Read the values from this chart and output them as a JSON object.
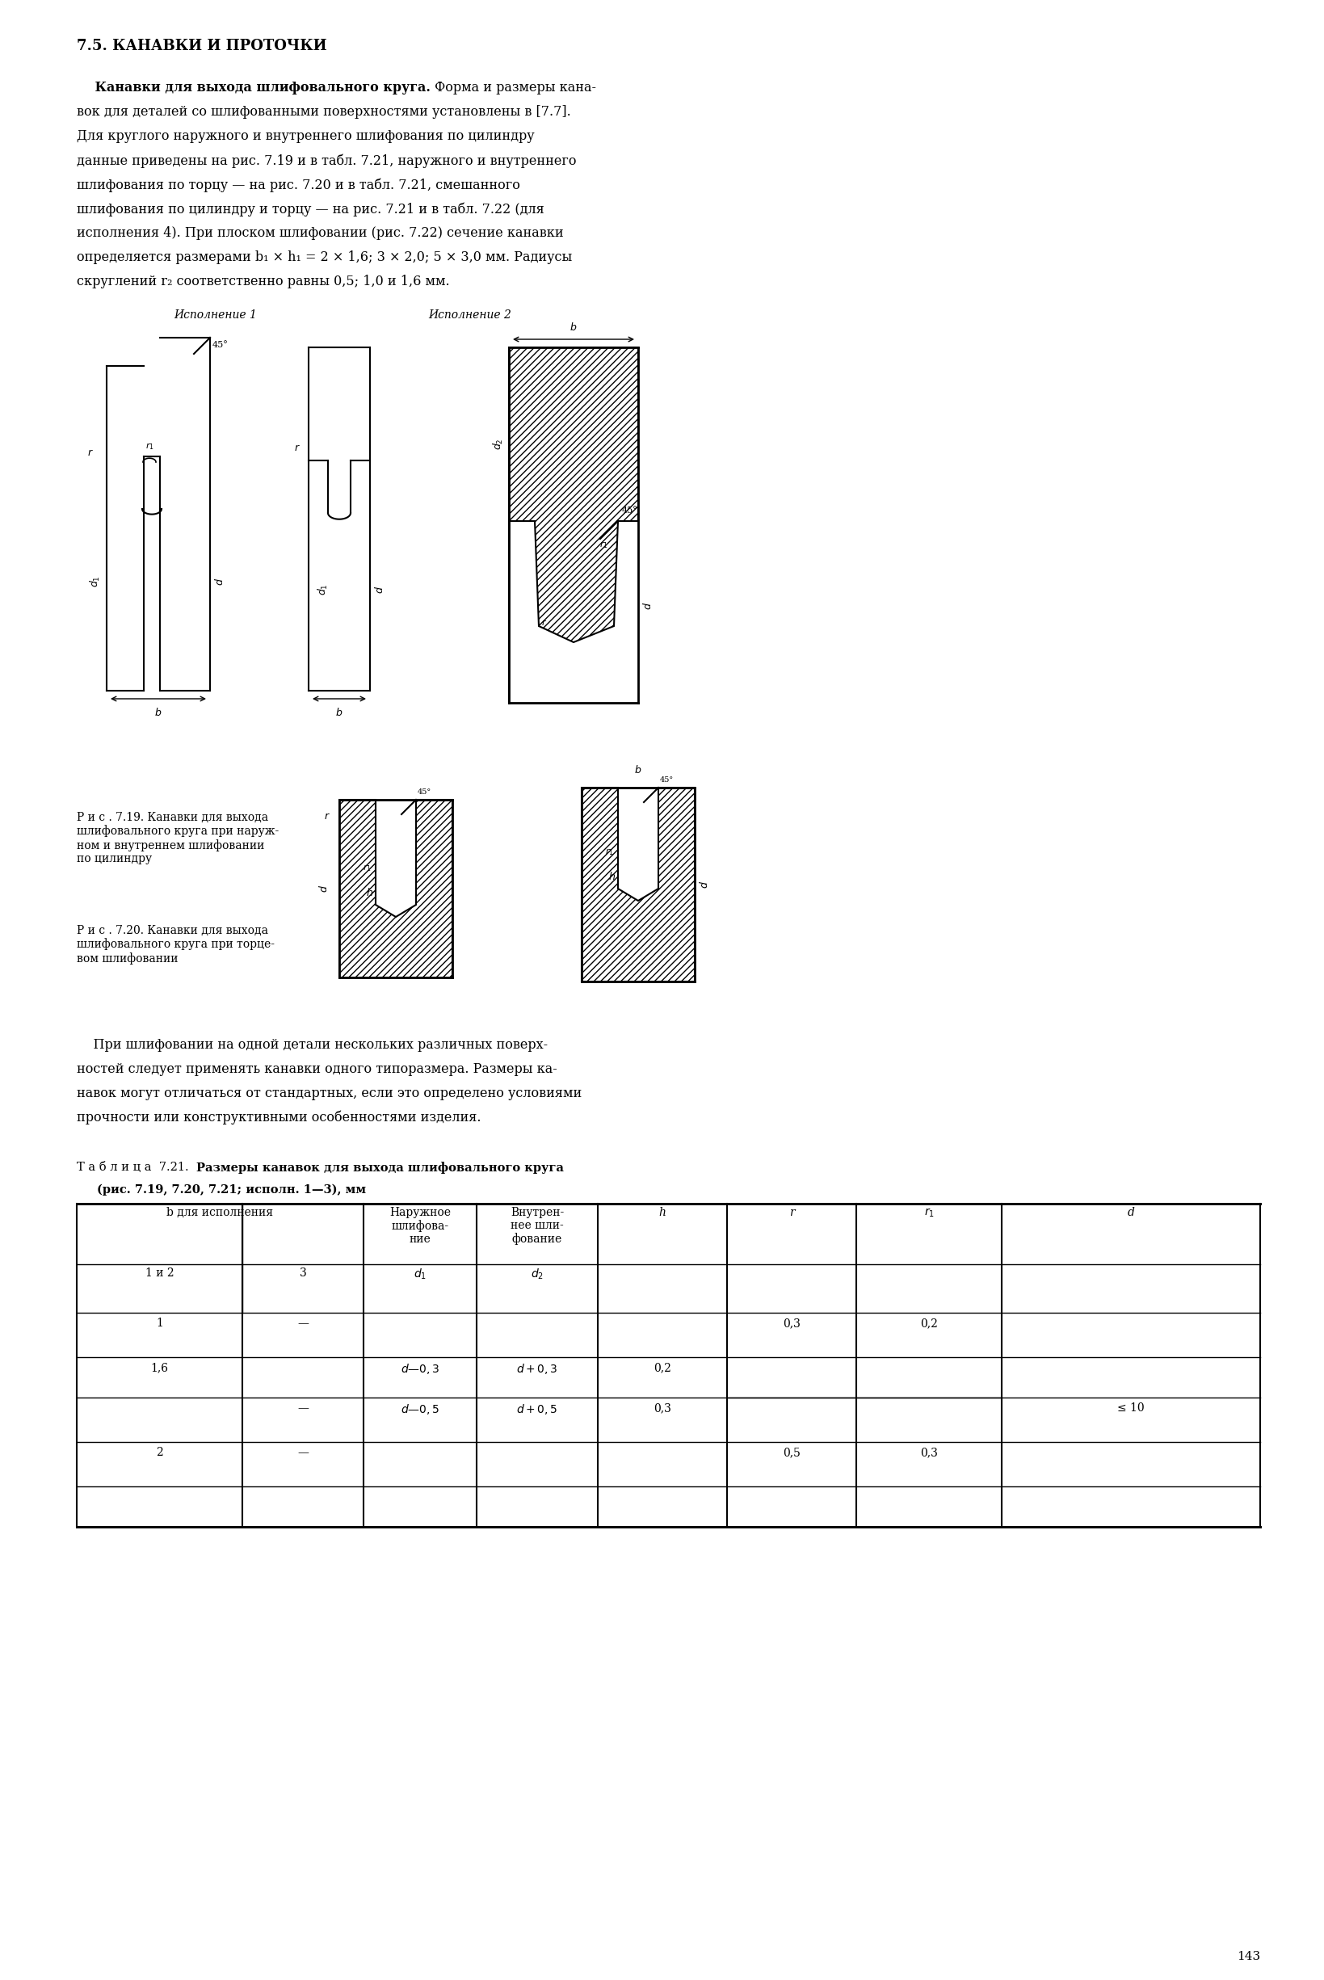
{
  "title": "7.5. КАНАВКИ И ПРОТОЧКИ",
  "para1_lines": [
    [
      "bold",
      "    Канавки для выхода шлифовального круга.",
      "normal",
      " Форма и размеры кана-"
    ],
    [
      "normal",
      "вок для деталей со шлифованными поверхностями установлены в [7.7]."
    ],
    [
      "normal",
      "Для круглого наружного и внутреннего шлифования по цилиндру"
    ],
    [
      "normal",
      "данные приведены на рис. 7.19 и в табл. 7.21, наружного и внутреннего"
    ],
    [
      "normal",
      "шлифования по торцу — на рис. 7.20 и в табл. 7.21, смешанного"
    ],
    [
      "normal",
      "шлифования по цилиндру и торцу — на рис. 7.21 и в табл. 7.22 (для"
    ],
    [
      "normal",
      "исполнения 4). При плоском шлифовании (рис. 7.22) сечение канавки"
    ],
    [
      "normal",
      "определяется размерами b₁ × h₁ = 2 × 1,6; 3 × 2,0; 5 × 3,0 мм. Радиусы"
    ],
    [
      "normal",
      "скруглений r₂ соответственно равны 0,5; 1,0 и 1,6 мм."
    ]
  ],
  "ispolnenie1_label": "Исполнение 1",
  "ispolnenie2_label": "Исполнение 2",
  "fig19_caption": "Р и с . 7.19. Канавки для выхода\nшлифовального круга при наруж-\nном и внутреннем шлифовании\nпо цилиндру",
  "fig20_caption": "Р и с . 7.20. Канавки для выхода\nшлифовального круга при торце-\nвом шлифовании",
  "para2_lines": [
    "    При шлифовании на одной детали нескольких различных поверх-",
    "ностей следует применять канавки одного типоразмера. Размеры ка-",
    "навок могут отличаться от стандартных, если это определено условиями",
    "прочности или конструктивными особенностями изделия."
  ],
  "table_label_normal": "Т а б л и ц а  7.21. ",
  "table_label_bold": "Размеры канавок для выхода шлифовального круга",
  "table_label_line2": "(рис. 7.19, 7.20, 7.21; исполн. 1—3), мм",
  "page_number": "143",
  "bg_color": "#ffffff"
}
